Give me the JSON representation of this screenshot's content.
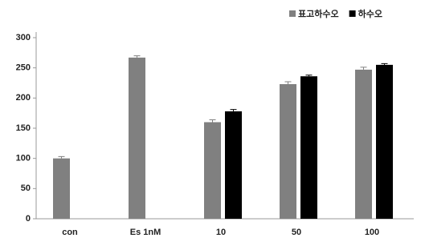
{
  "chart_data": {
    "type": "bar",
    "categories": [
      "con",
      "Es 1nM",
      "10",
      "50",
      "100"
    ],
    "series": [
      {
        "name": "표고하수오",
        "color": "#808080",
        "values": [
          100,
          267,
          160,
          223,
          247
        ],
        "errors": [
          3,
          3,
          4,
          4,
          4
        ]
      },
      {
        "name": "하수오",
        "color": "#000000",
        "values": [
          null,
          null,
          178,
          236,
          255
        ],
        "errors": [
          null,
          null,
          3,
          2,
          2
        ]
      }
    ],
    "ylim": [
      0,
      300
    ],
    "yticks": [
      0,
      50,
      100,
      150,
      200,
      250,
      300
    ],
    "grid": false,
    "legend": "top-right"
  }
}
